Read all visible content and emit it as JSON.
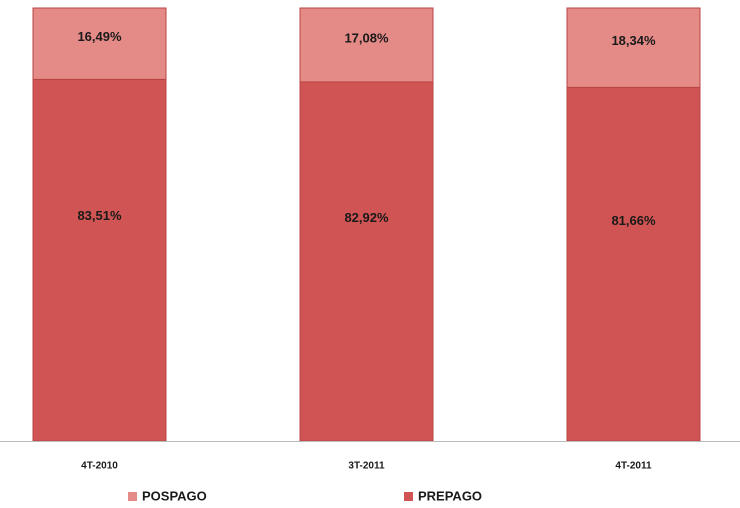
{
  "chart_data": {
    "type": "stacked_bar",
    "categories": [
      "4T-2010",
      "3T-2011",
      "4T-2011"
    ],
    "series": [
      {
        "name": "POSPAGO",
        "color": "#e48a87",
        "values": [
          16.49,
          17.08,
          18.34
        ],
        "value_labels": [
          "16,49%",
          "17,08%",
          "18,34%"
        ]
      },
      {
        "name": "PREPAGO",
        "color": "#d05453",
        "values": [
          83.51,
          82.92,
          81.66
        ],
        "value_labels": [
          "83,51%",
          "82,92%",
          "81,66%"
        ]
      }
    ]
  }
}
